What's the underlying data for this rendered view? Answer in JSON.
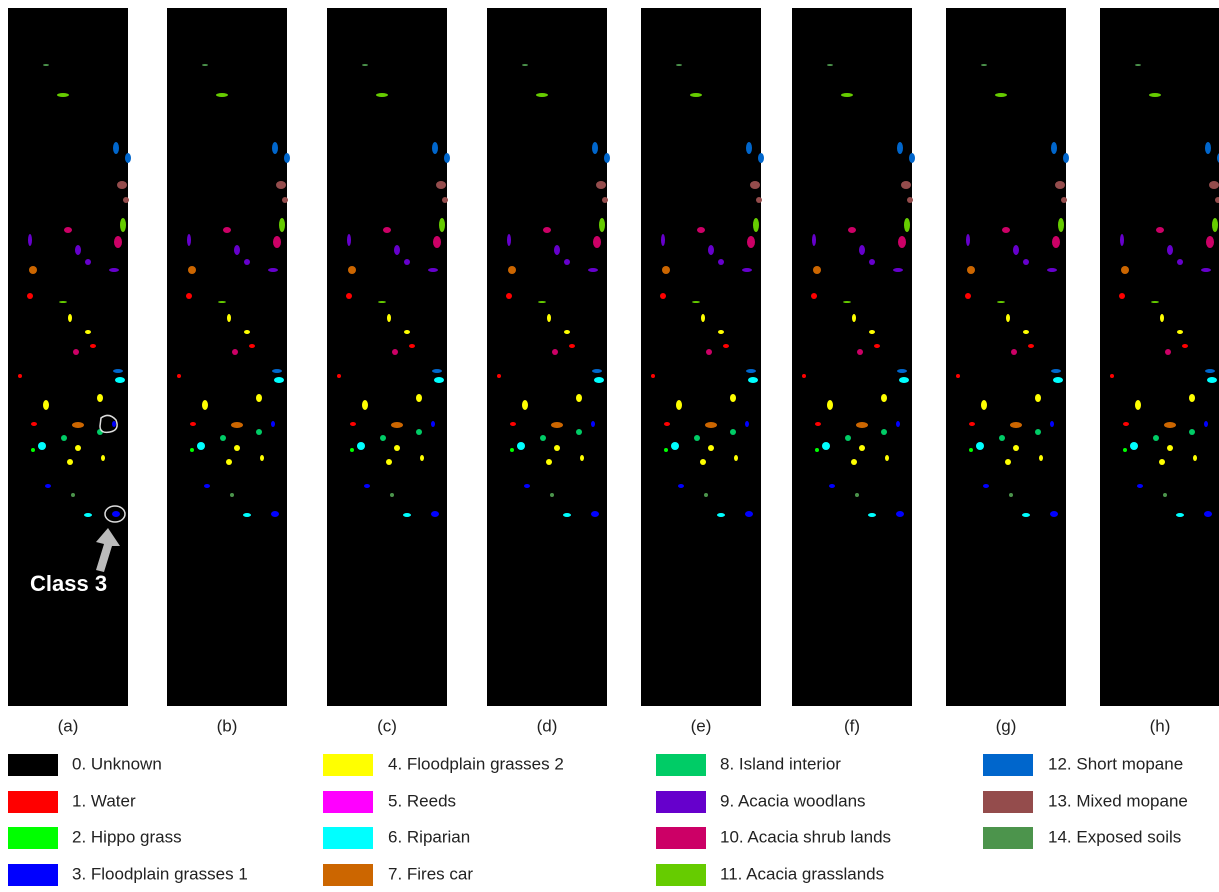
{
  "panels": [
    "(a)",
    "(b)",
    "(c)",
    "(d)",
    "(e)",
    "(f)",
    "(g)",
    "(h)"
  ],
  "annotation": "Class 3",
  "legend": [
    {
      "label": "0. Unknown",
      "color": "#000000"
    },
    {
      "label": "1. Water",
      "color": "#ff0000"
    },
    {
      "label": "2. Hippo grass",
      "color": "#00ff00"
    },
    {
      "label": "3. Floodplain grasses 1",
      "color": "#0000ff"
    },
    {
      "label": "4. Floodplain grasses 2",
      "color": "#ffff00"
    },
    {
      "label": "5. Reeds",
      "color": "#ff00ff"
    },
    {
      "label": "6. Riparian",
      "color": "#00ffff"
    },
    {
      "label": "7. Fires car",
      "color": "#cc6600"
    },
    {
      "label": "8. Island interior",
      "color": "#00cc66"
    },
    {
      "label": "9. Acacia woodlans",
      "color": "#6600cc"
    },
    {
      "label": "10. Acacia shrub lands",
      "color": "#cc0066"
    },
    {
      "label": "11. Acacia grasslands",
      "color": "#66cc00"
    },
    {
      "label": "12. Short mopane",
      "color": "#0066cc"
    },
    {
      "label": "13. Mixed mopane",
      "color": "#944c4c"
    },
    {
      "label": "14. Exposed soils",
      "color": "#4c944c"
    }
  ]
}
